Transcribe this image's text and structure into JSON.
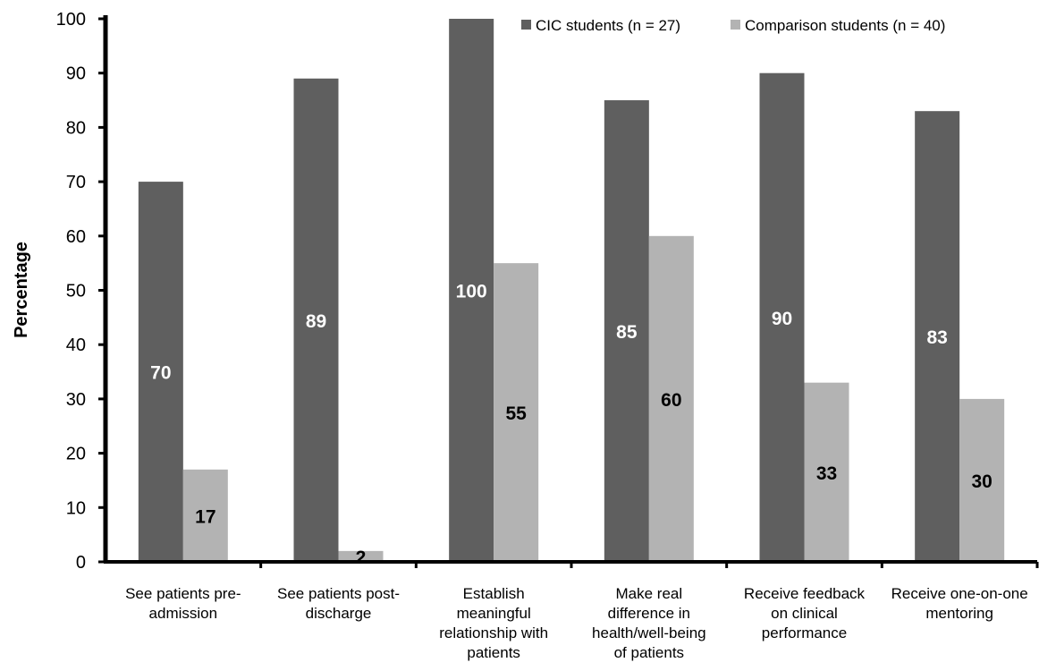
{
  "chart_data": {
    "type": "bar",
    "ylabel": "Percentage",
    "xlabel": "",
    "ylim": [
      0,
      100
    ],
    "yticks": [
      0,
      10,
      20,
      30,
      40,
      50,
      60,
      70,
      80,
      90,
      100
    ],
    "categories": [
      [
        "See patients pre-",
        "admission"
      ],
      [
        "See patients post-",
        "discharge"
      ],
      [
        "Establish",
        "meaningful",
        "relationship with",
        "patients"
      ],
      [
        "Make real",
        "difference in",
        "health/well-being",
        "of patients"
      ],
      [
        "Receive feedback",
        "on clinical",
        "performance"
      ],
      [
        "Receive one-on-one",
        "mentoring"
      ]
    ],
    "series": [
      {
        "name": "CIC students (n = 27)",
        "values": [
          70,
          89,
          100,
          85,
          90,
          83
        ],
        "color": "#5f5f5f",
        "label_color": "#ffffff"
      },
      {
        "name": "Comparison students (n = 40)",
        "values": [
          17,
          2,
          55,
          60,
          33,
          30
        ],
        "color": "#b3b3b3",
        "label_color": "#000000"
      }
    ],
    "legend_position": "top-right",
    "grid": false
  }
}
